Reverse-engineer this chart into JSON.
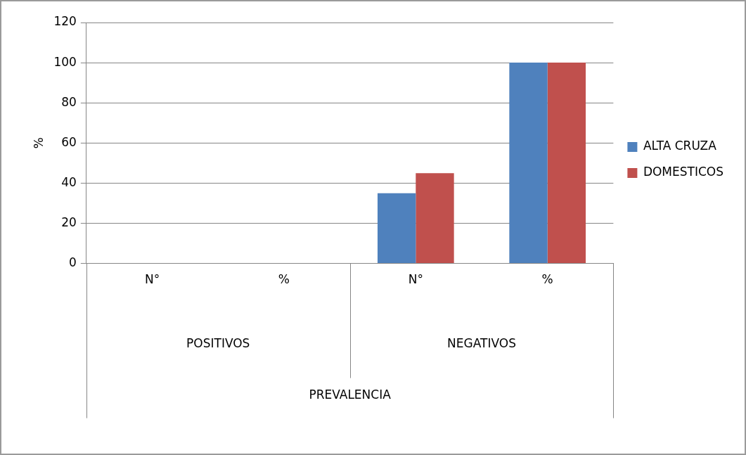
{
  "chart_data": {
    "type": "bar",
    "ylabel": "%",
    "categories": [
      "N°",
      "%",
      "N°",
      "%"
    ],
    "series": [
      {
        "name": "ALTA CRUZA",
        "color": "#4f81bd",
        "values": [
          0,
          0,
          35,
          100
        ]
      },
      {
        "name": "DOMESTICOS",
        "color": "#c0504d",
        "values": [
          0,
          0,
          45,
          100
        ]
      }
    ],
    "ylim": [
      0,
      120
    ],
    "yticks": [
      0,
      20,
      40,
      60,
      80,
      100,
      120
    ],
    "grid": "y",
    "legend": "right",
    "annotations": [
      "POSITIVOS",
      "NEGATIVOS",
      "PREVALENCIA"
    ]
  }
}
